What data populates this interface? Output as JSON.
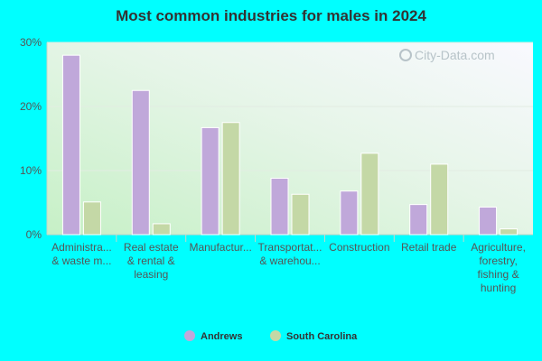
{
  "chart_data": {
    "type": "bar",
    "title": "Most common industries for males in 2024",
    "categories": [
      [
        "Administra...",
        "& waste m..."
      ],
      [
        "Real estate",
        "& rental &",
        "leasing"
      ],
      [
        "Manufactur..."
      ],
      [
        "Transportat...",
        "& warehou..."
      ],
      [
        "Construction"
      ],
      [
        "Retail trade"
      ],
      [
        "Agriculture,",
        "forestry,",
        "fishing &",
        "hunting"
      ]
    ],
    "series": [
      {
        "name": "Andrews",
        "color": "#c0a8da",
        "values": [
          28.0,
          22.5,
          16.7,
          8.8,
          6.8,
          4.7,
          4.3
        ]
      },
      {
        "name": "South Carolina",
        "color": "#c4d8a6",
        "values": [
          5.1,
          1.7,
          17.5,
          6.3,
          12.7,
          11.0,
          0.9
        ]
      }
    ],
    "yticks": [
      "0%",
      "10%",
      "20%",
      "30%"
    ],
    "ylim": [
      0,
      30
    ],
    "grid": true,
    "legend_position": "bottom",
    "watermark": "City-Data.com"
  }
}
